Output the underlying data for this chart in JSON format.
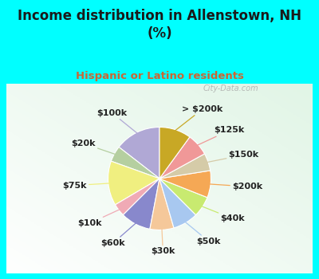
{
  "title": "Income distribution in Allenstown, NH\n(%)",
  "subtitle": "Hispanic or Latino residents",
  "title_color": "#1a1a1a",
  "subtitle_color": "#cc6633",
  "background_cyan": "#00ffff",
  "background_chart_tl": "#e8f8f0",
  "background_chart_br": "#c8ede0",
  "labels": [
    "$100k",
    "$20k",
    "$75k",
    "$10k",
    "$60k",
    "$30k",
    "$50k",
    "$40k",
    "$200k",
    "$150k",
    "$125k",
    "> $200k"
  ],
  "values": [
    14.5,
    5.0,
    14.0,
    4.0,
    9.5,
    7.5,
    8.0,
    6.5,
    8.5,
    5.5,
    7.0,
    10.0
  ],
  "colors": [
    "#b0a8d5",
    "#b5cfa0",
    "#f0ef80",
    "#f0aab5",
    "#8888cc",
    "#f5c89a",
    "#a8c8f0",
    "#c8ea70",
    "#f5a855",
    "#d5cba8",
    "#f09898",
    "#c8a825"
  ],
  "startangle": 90,
  "label_fontsize": 8,
  "label_color": "#222222",
  "watermark": "City-Data.com"
}
